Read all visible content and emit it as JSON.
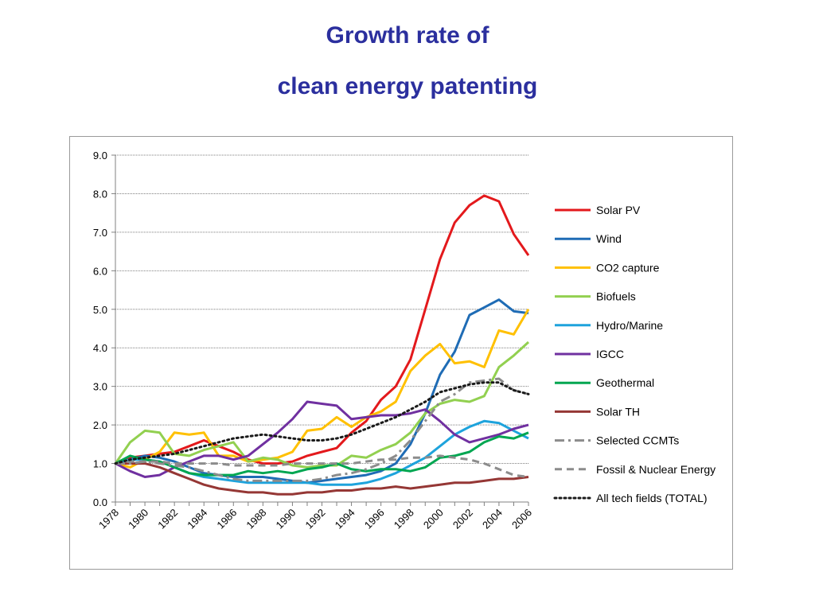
{
  "title": {
    "line1": "Growth rate of",
    "line2": "clean energy patenting"
  },
  "chart_data": {
    "type": "line",
    "title": "Growth rate of clean energy patenting",
    "xlabel": "",
    "ylabel": "",
    "x": [
      1978,
      1979,
      1980,
      1981,
      1982,
      1983,
      1984,
      1985,
      1986,
      1987,
      1988,
      1989,
      1990,
      1991,
      1992,
      1993,
      1994,
      1995,
      1996,
      1997,
      1998,
      1999,
      2000,
      2001,
      2002,
      2003,
      2004,
      2005,
      2006
    ],
    "x_tick_labels": [
      "1978",
      "1980",
      "1982",
      "1984",
      "1986",
      "1988",
      "1990",
      "1992",
      "1994",
      "1996",
      "1998",
      "2000",
      "2002",
      "2004",
      "2006"
    ],
    "y_tick_labels": [
      "0.0",
      "1.0",
      "2.0",
      "3.0",
      "4.0",
      "5.0",
      "6.0",
      "7.0",
      "8.0",
      "9.0"
    ],
    "ylim": [
      0,
      9
    ],
    "grid": "horizontal",
    "legend_position": "right",
    "series": [
      {
        "name": "Solar PV",
        "color": "#e3191c",
        "style": "solid",
        "values": [
          1.0,
          1.15,
          1.2,
          1.25,
          1.3,
          1.45,
          1.6,
          1.45,
          1.3,
          1.1,
          1.0,
          1.0,
          1.05,
          1.2,
          1.3,
          1.4,
          1.8,
          2.1,
          2.65,
          3.0,
          3.7,
          5.0,
          6.3,
          7.25,
          7.7,
          7.95,
          7.8,
          6.95,
          6.4
        ]
      },
      {
        "name": "Wind",
        "color": "#1f6cb5",
        "style": "solid",
        "values": [
          1.0,
          1.1,
          1.2,
          1.15,
          1.05,
          0.9,
          0.75,
          0.7,
          0.65,
          0.65,
          0.65,
          0.6,
          0.55,
          0.5,
          0.55,
          0.6,
          0.65,
          0.7,
          0.8,
          1.0,
          1.5,
          2.3,
          3.3,
          3.9,
          4.85,
          5.05,
          5.25,
          4.95,
          4.9
        ]
      },
      {
        "name": "CO2 capture",
        "color": "#ffc000",
        "style": "solid",
        "values": [
          1.0,
          0.9,
          1.1,
          1.3,
          1.8,
          1.75,
          1.8,
          1.2,
          1.2,
          1.05,
          1.1,
          1.15,
          1.3,
          1.85,
          1.9,
          2.2,
          1.95,
          2.2,
          2.35,
          2.6,
          3.4,
          3.8,
          4.1,
          3.6,
          3.65,
          3.5,
          4.45,
          4.35,
          5.0
        ]
      },
      {
        "name": "Biofuels",
        "color": "#92d050",
        "style": "solid",
        "values": [
          1.0,
          1.55,
          1.85,
          1.8,
          1.25,
          1.2,
          1.35,
          1.45,
          1.55,
          1.05,
          1.15,
          1.1,
          0.95,
          0.9,
          0.95,
          0.95,
          1.2,
          1.15,
          1.35,
          1.5,
          1.8,
          2.3,
          2.55,
          2.65,
          2.6,
          2.75,
          3.5,
          3.8,
          4.15
        ]
      },
      {
        "name": "Hydro/Marine",
        "color": "#1ea3dc",
        "style": "solid",
        "values": [
          1.0,
          1.1,
          1.1,
          1.05,
          0.9,
          0.75,
          0.65,
          0.6,
          0.55,
          0.5,
          0.5,
          0.5,
          0.5,
          0.5,
          0.45,
          0.45,
          0.45,
          0.5,
          0.6,
          0.75,
          0.95,
          1.15,
          1.45,
          1.75,
          1.95,
          2.1,
          2.05,
          1.85,
          1.65
        ]
      },
      {
        "name": "IGCC",
        "color": "#7030a0",
        "style": "solid",
        "values": [
          1.0,
          0.8,
          0.65,
          0.7,
          0.9,
          1.05,
          1.2,
          1.2,
          1.1,
          1.2,
          1.5,
          1.8,
          2.15,
          2.6,
          2.55,
          2.5,
          2.15,
          2.2,
          2.25,
          2.25,
          2.3,
          2.4,
          2.1,
          1.75,
          1.55,
          1.65,
          1.75,
          1.9,
          2.0
        ]
      },
      {
        "name": "Geothermal",
        "color": "#00a651",
        "style": "solid",
        "values": [
          1.0,
          1.2,
          1.1,
          1.05,
          0.9,
          0.75,
          0.7,
          0.7,
          0.7,
          0.8,
          0.75,
          0.8,
          0.75,
          0.85,
          0.9,
          1.0,
          0.85,
          0.8,
          0.85,
          0.85,
          0.8,
          0.9,
          1.15,
          1.2,
          1.3,
          1.55,
          1.7,
          1.65,
          1.8
        ]
      },
      {
        "name": "Solar TH",
        "color": "#953735",
        "style": "solid",
        "values": [
          1.0,
          1.0,
          1.0,
          0.9,
          0.75,
          0.6,
          0.45,
          0.35,
          0.3,
          0.25,
          0.25,
          0.2,
          0.2,
          0.25,
          0.25,
          0.3,
          0.3,
          0.35,
          0.35,
          0.4,
          0.35,
          0.4,
          0.45,
          0.5,
          0.5,
          0.55,
          0.6,
          0.6,
          0.65
        ]
      },
      {
        "name": "Selected CCMTs",
        "color": "#8c8c8c",
        "style": "dashdot",
        "values": [
          1.0,
          1.0,
          1.05,
          1.0,
          0.95,
          0.9,
          0.8,
          0.7,
          0.6,
          0.55,
          0.55,
          0.55,
          0.55,
          0.55,
          0.6,
          0.7,
          0.75,
          0.85,
          1.0,
          1.2,
          1.6,
          2.1,
          2.6,
          2.8,
          3.1,
          3.15,
          3.2,
          2.9,
          2.8
        ]
      },
      {
        "name": "Fossil & Nuclear Energy",
        "color": "#8c8c8c",
        "style": "dashed",
        "values": [
          1.0,
          1.05,
          1.05,
          1.05,
          1.0,
          1.0,
          1.0,
          1.0,
          0.95,
          0.95,
          0.95,
          0.95,
          1.0,
          1.0,
          1.0,
          1.0,
          1.0,
          1.05,
          1.1,
          1.1,
          1.15,
          1.15,
          1.2,
          1.15,
          1.1,
          1.0,
          0.85,
          0.7,
          0.65
        ]
      },
      {
        "name": "All tech fields (TOTAL)",
        "color": "#1a1a1a",
        "style": "dotted",
        "values": [
          1.0,
          1.1,
          1.15,
          1.2,
          1.25,
          1.35,
          1.45,
          1.55,
          1.65,
          1.7,
          1.75,
          1.7,
          1.65,
          1.6,
          1.6,
          1.65,
          1.75,
          1.9,
          2.05,
          2.2,
          2.4,
          2.6,
          2.85,
          2.95,
          3.05,
          3.1,
          3.1,
          2.9,
          2.8
        ]
      }
    ]
  }
}
